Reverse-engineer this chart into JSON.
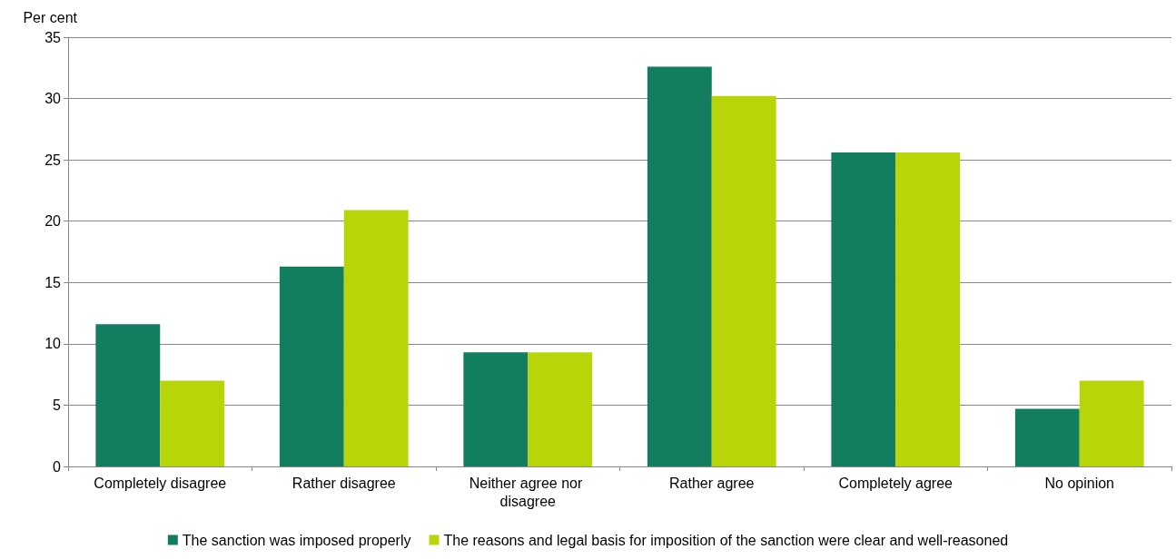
{
  "chart_data": {
    "type": "bar",
    "ylabel": "Per cent",
    "categories": [
      "Completely disagree",
      "Rather disagree",
      "Neither agree nor disagree",
      "Rather agree",
      "Completely agree",
      "No opinion"
    ],
    "series": [
      {
        "name": "The sanction was imposed properly",
        "color": "#127e5f",
        "values": [
          11.6,
          16.3,
          9.3,
          32.6,
          25.6,
          4.7
        ]
      },
      {
        "name": "The reasons and legal basis for imposition of the sanction were clear and well-reasoned",
        "color": "#b8d50a",
        "values": [
          7.0,
          20.9,
          9.3,
          30.2,
          25.6,
          7.0
        ]
      }
    ],
    "ylim": [
      0,
      35
    ],
    "yticks": [
      0,
      5,
      10,
      15,
      20,
      25,
      30,
      35
    ],
    "grid": "y",
    "legend": "bottom"
  }
}
